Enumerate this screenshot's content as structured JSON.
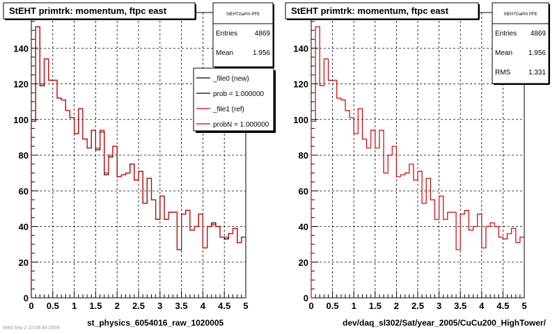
{
  "chart_data": [
    {
      "type": "line",
      "title": "StEHT primtrk: momentum, ftpc east",
      "xlabel": "st_physics_6054016_raw_1020005",
      "ylabel": "",
      "xlim": [
        0,
        5
      ],
      "ylim": [
        0,
        160
      ],
      "x_ticks": [
        0,
        0.5,
        1,
        1.5,
        2,
        2.5,
        3,
        3.5,
        4,
        4.5,
        5
      ],
      "y_ticks": [
        0,
        20,
        40,
        60,
        80,
        100,
        120,
        140
      ],
      "grid": true,
      "legend_position": "top-right",
      "stats": {
        "name": "StEHTGaPrh PFE",
        "rows": [
          {
            "label": "Entries",
            "value": "4869"
          },
          {
            "label": "Mean",
            "value": "1.956"
          }
        ]
      },
      "legend": [
        {
          "label": "_file0 (new)",
          "color": "#000000"
        },
        {
          "label": "prob = 1.000000",
          "color": "#000000"
        },
        {
          "label": "_file1 (ref)",
          "color": "#cc0000"
        },
        {
          "label": "probN = 1.000000",
          "color": "#cc0000"
        }
      ],
      "series": [
        {
          "color": "#000000",
          "bin_width": 0.1,
          "values": [
            99,
            152,
            119,
            134,
            122,
            122,
            112,
            111,
            105,
            101,
            92,
            106,
            89,
            84,
            94,
            83,
            93,
            69,
            79,
            85,
            68,
            69,
            70,
            75,
            66,
            71,
            53,
            67,
            55,
            44,
            57,
            44,
            48,
            48,
            27,
            47,
            49,
            38,
            40,
            47,
            28,
            40,
            42,
            40,
            34,
            33,
            36,
            39,
            31,
            34
          ]
        },
        {
          "color": "#cc0000",
          "bin_width": 0.1,
          "values": [
            99,
            152,
            120,
            134,
            122,
            122,
            112,
            111,
            105,
            101,
            92,
            106,
            89,
            84,
            94,
            84,
            94,
            70,
            80,
            85,
            68,
            69,
            70,
            75,
            66,
            71,
            53,
            67,
            55,
            44,
            57,
            44,
            48,
            48,
            27,
            47,
            49,
            38,
            40,
            47,
            28,
            40,
            41,
            40,
            34,
            34,
            36,
            39,
            31,
            34
          ]
        }
      ]
    },
    {
      "type": "line",
      "title": "StEHT primtrk: momentum, ftpc east",
      "xlabel": "dev/daq_sl302/Sat/year_2005/CuCu200_HighTower/",
      "ylabel": "",
      "xlim": [
        0,
        5
      ],
      "ylim": [
        0,
        160
      ],
      "x_ticks": [
        0,
        0.5,
        1,
        1.5,
        2,
        2.5,
        3,
        3.5,
        4,
        4.5,
        5
      ],
      "y_ticks": [
        0,
        20,
        40,
        60,
        80,
        100,
        120,
        140
      ],
      "grid": true,
      "stats": {
        "name": "StEHTGaPrh PFE",
        "rows": [
          {
            "label": "Entries",
            "value": "4869"
          },
          {
            "label": "Mean",
            "value": "1.956"
          },
          {
            "label": "RMS",
            "value": "1.331"
          }
        ]
      },
      "series": [
        {
          "color": "#cc0000",
          "bin_width": 0.1,
          "values": [
            99,
            152,
            119,
            134,
            122,
            122,
            112,
            111,
            105,
            101,
            92,
            106,
            89,
            84,
            94,
            84,
            94,
            70,
            80,
            85,
            68,
            69,
            70,
            75,
            66,
            71,
            53,
            67,
            55,
            44,
            57,
            44,
            48,
            48,
            27,
            47,
            49,
            38,
            40,
            47,
            28,
            40,
            42,
            40,
            34,
            33,
            36,
            39,
            31,
            34
          ]
        }
      ]
    }
  ],
  "footer_text": "Wed Sep 2 10:08:49 2009"
}
